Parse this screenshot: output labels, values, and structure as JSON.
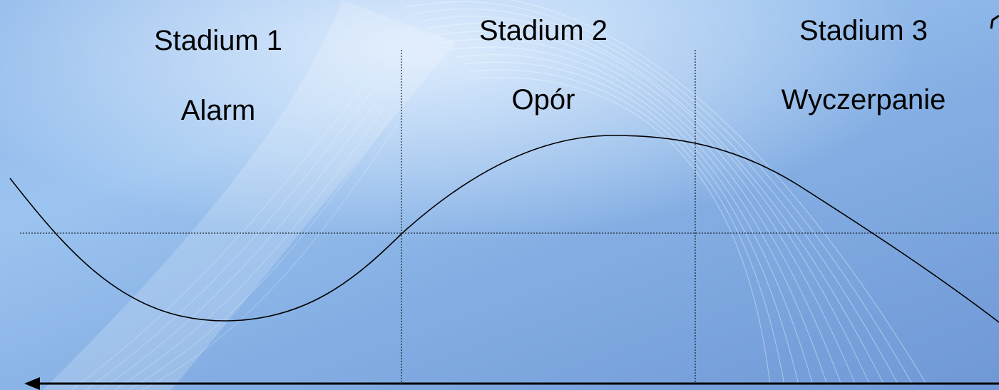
{
  "stages": [
    {
      "title": "Stadium 1",
      "name": "Alarm"
    },
    {
      "title": "Stadium 2",
      "name": "Opór"
    },
    {
      "title": "Stadium 3",
      "name": "Wyczerpanie"
    }
  ],
  "colors": {
    "background": "#8fb8ea",
    "line": "#000000"
  }
}
